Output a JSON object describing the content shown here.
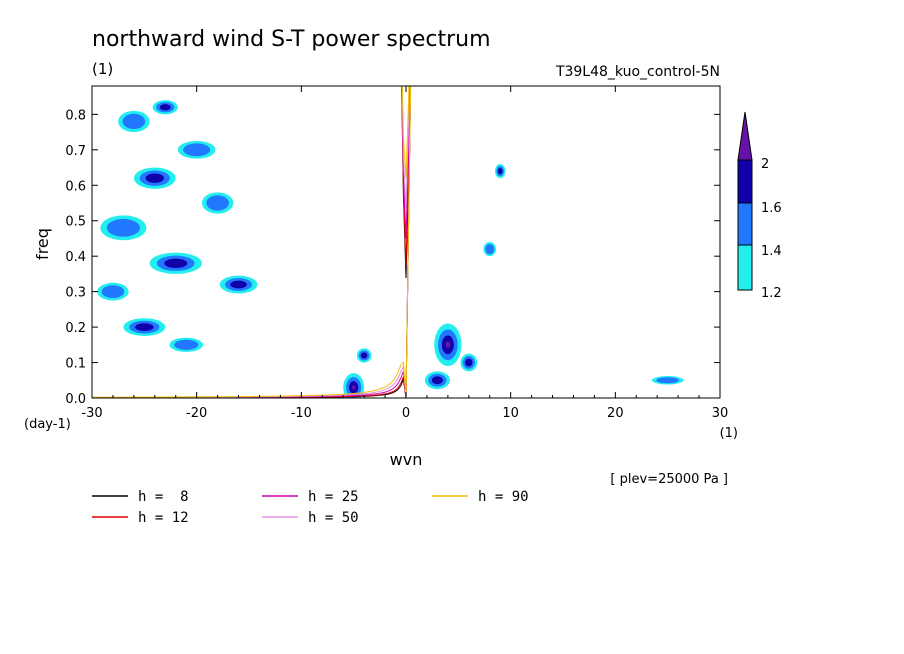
{
  "chart_data": {
    "type": "heatmap",
    "title": "northward wind S-T power spectrum",
    "subtitle_left": "(1)",
    "subtitle_right": "T39L48_kuo_control-5N",
    "xlabel": "wvn",
    "ylabel": "freq",
    "x_unit_label": "(1)",
    "y_unit_label": "(day-1)",
    "note": "[ plev=25000 Pa ]",
    "xlim": [
      -30,
      30
    ],
    "ylim": [
      0,
      0.88
    ],
    "xticks": [
      -30,
      -20,
      -10,
      0,
      10,
      20,
      30
    ],
    "yticks": [
      0.0,
      0.1,
      0.2,
      0.3,
      0.4,
      0.5,
      0.6,
      0.7,
      0.8
    ],
    "xtick_labels": [
      "-30",
      "-20",
      "-10",
      "0",
      "10",
      "20",
      "30"
    ],
    "ytick_labels": [
      "0.0",
      "0.1",
      "0.2",
      "0.3",
      "0.4",
      "0.5",
      "0.6",
      "0.7",
      "0.8"
    ],
    "colorbar": {
      "levels": [
        "1.2",
        "1.4",
        "1.6",
        "2"
      ],
      "level_values": [
        1.2,
        1.4,
        1.6,
        1.8,
        2.0
      ],
      "colors": [
        "#22eeee",
        "#2277ff",
        "#1100aa",
        "#6611aa"
      ]
    },
    "shading_regions": [
      {
        "x": -27,
        "y": 0.48,
        "rx": 2.2,
        "ry": 0.035,
        "level": 1
      },
      {
        "x": -24,
        "y": 0.62,
        "rx": 2.0,
        "ry": 0.03,
        "level": 2
      },
      {
        "x": -22,
        "y": 0.38,
        "rx": 2.5,
        "ry": 0.03,
        "level": 2
      },
      {
        "x": -20,
        "y": 0.7,
        "rx": 1.8,
        "ry": 0.025,
        "level": 1
      },
      {
        "x": -18,
        "y": 0.55,
        "rx": 1.5,
        "ry": 0.03,
        "level": 1
      },
      {
        "x": -28,
        "y": 0.3,
        "rx": 1.5,
        "ry": 0.025,
        "level": 1
      },
      {
        "x": -25,
        "y": 0.2,
        "rx": 2.0,
        "ry": 0.025,
        "level": 2
      },
      {
        "x": -21,
        "y": 0.15,
        "rx": 1.6,
        "ry": 0.02,
        "level": 1
      },
      {
        "x": -16,
        "y": 0.32,
        "rx": 1.8,
        "ry": 0.025,
        "level": 2
      },
      {
        "x": -26,
        "y": 0.78,
        "rx": 1.5,
        "ry": 0.03,
        "level": 1
      },
      {
        "x": -23,
        "y": 0.82,
        "rx": 1.2,
        "ry": 0.02,
        "level": 2
      },
      {
        "x": -5,
        "y": 0.03,
        "rx": 1.0,
        "ry": 0.04,
        "level": 3
      },
      {
        "x": -4,
        "y": 0.12,
        "rx": 0.7,
        "ry": 0.02,
        "level": 2
      },
      {
        "x": 4,
        "y": 0.15,
        "rx": 1.3,
        "ry": 0.06,
        "level": 3
      },
      {
        "x": 3,
        "y": 0.05,
        "rx": 1.2,
        "ry": 0.025,
        "level": 2
      },
      {
        "x": 6,
        "y": 0.1,
        "rx": 0.8,
        "ry": 0.025,
        "level": 2
      },
      {
        "x": 9,
        "y": 0.64,
        "rx": 0.5,
        "ry": 0.02,
        "level": 2
      },
      {
        "x": 8,
        "y": 0.42,
        "rx": 0.6,
        "ry": 0.02,
        "level": 1
      },
      {
        "x": 25,
        "y": 0.05,
        "rx": 1.5,
        "ry": 0.012,
        "level": 1
      }
    ],
    "legend": [
      {
        "label": "h =  8",
        "h": 8,
        "color": "#000000"
      },
      {
        "label": "h = 12",
        "h": 12,
        "color": "#e00000"
      },
      {
        "label": "h = 25",
        "h": 25,
        "color": "#d800b0"
      },
      {
        "label": "h = 50",
        "h": 50,
        "color": "#e090e0"
      },
      {
        "label": "h = 90",
        "h": 90,
        "color": "#f0c000"
      }
    ]
  }
}
